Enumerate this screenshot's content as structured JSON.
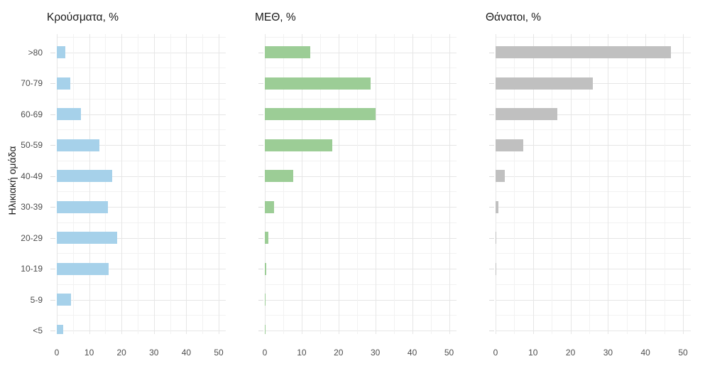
{
  "chart_data": {
    "type": "bar",
    "orientation": "horizontal",
    "ylabel": "Ηλικιακή ομάδα",
    "categories": [
      ">80",
      "70-79",
      "60-69",
      "50-59",
      "40-49",
      "30-39",
      "20-29",
      "10-19",
      "5-9",
      "<5"
    ],
    "x_axis": {
      "major_ticks": [
        0,
        10,
        20,
        30,
        40,
        50
      ],
      "minor_ticks": [
        5,
        15,
        25,
        35,
        45
      ],
      "range": [
        0,
        52
      ],
      "unit": "%"
    },
    "grid": "on",
    "legend": "none",
    "panels": [
      {
        "title": "Κρούσματα, %",
        "color": "#a6d1ea",
        "values": [
          2.7,
          4.1,
          7.4,
          13.1,
          17.0,
          15.8,
          18.7,
          15.9,
          4.4,
          1.9
        ]
      },
      {
        "title": "ΜΕΘ, %",
        "color": "#9ccd96",
        "values": [
          12.4,
          28.8,
          30.0,
          18.4,
          7.8,
          2.6,
          0.9,
          0.3,
          0.1,
          0.2
        ]
      },
      {
        "title": "Θάνατοι, %",
        "color": "#c0c0c0",
        "values": [
          46.7,
          26.0,
          16.5,
          7.4,
          2.5,
          0.8,
          0.15,
          0.15,
          0,
          0
        ]
      }
    ],
    "colors": {
      "grid_major": "#e6e6e6",
      "grid_minor": "#f2f2f2",
      "axis_text": "#4d4d4d",
      "title_text": "#1a1a1a"
    }
  }
}
